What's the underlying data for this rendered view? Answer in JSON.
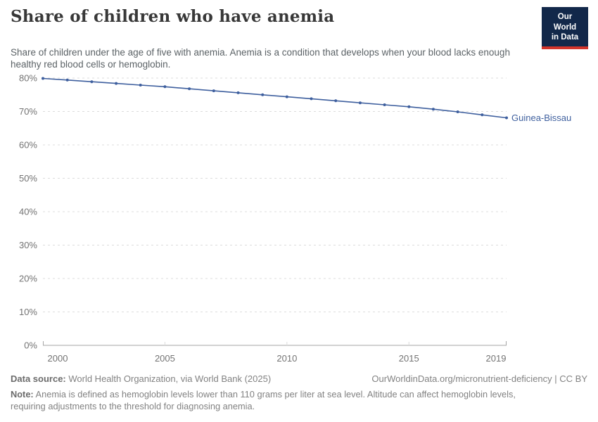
{
  "header": {
    "title": "Share of children who have anemia",
    "subtitle": "Share of children under the age of five with anemia. Anemia is a condition that develops when your blood lacks enough healthy red blood cells or hemoglobin.",
    "logo": {
      "line1": "Our World",
      "line2": "in Data"
    }
  },
  "chart_data": {
    "type": "line",
    "title": "Share of children who have anemia",
    "xlabel": "",
    "ylabel": "",
    "x": [
      2000,
      2001,
      2002,
      2003,
      2004,
      2005,
      2006,
      2007,
      2008,
      2009,
      2010,
      2011,
      2012,
      2013,
      2014,
      2015,
      2016,
      2017,
      2018,
      2019
    ],
    "series": [
      {
        "name": "Guinea-Bissau",
        "color": "#3e5f9e",
        "values": [
          79.9,
          79.4,
          78.9,
          78.4,
          77.9,
          77.4,
          76.8,
          76.2,
          75.6,
          75.0,
          74.4,
          73.8,
          73.2,
          72.6,
          72.0,
          71.4,
          70.7,
          69.9,
          69.0,
          68.1
        ]
      }
    ],
    "x_ticks": [
      2000,
      2005,
      2010,
      2015,
      2019
    ],
    "y_ticks": [
      0,
      10,
      20,
      30,
      40,
      50,
      60,
      70,
      80
    ],
    "y_tick_suffix": "%",
    "xlim": [
      2000,
      2019
    ],
    "ylim": [
      0,
      80
    ],
    "grid": "horizontal-dashed",
    "legend": "end-of-line-label"
  },
  "footer": {
    "data_source_label": "Data source:",
    "data_source_text": " World Health Organization, via World Bank (2025)",
    "link_text": "OurWorldinData.org/micronutrient-deficiency | CC BY",
    "note_label": "Note:",
    "note_text": " Anemia is defined as hemoglobin levels lower than 110 grams per liter at sea level. Altitude can affect hemoglobin levels, requiring adjustments to the threshold for diagnosing anemia."
  },
  "colors": {
    "accent_line": "#3e5f9e",
    "logo_bg": "#12284a",
    "logo_red": "#d3352b",
    "grid": "#dcdcdc",
    "axis": "#a5a5a5",
    "tick_label": "#737373",
    "title_text": "#383838",
    "subtitle_text": "#5b6266",
    "footer_text": "#828282"
  }
}
